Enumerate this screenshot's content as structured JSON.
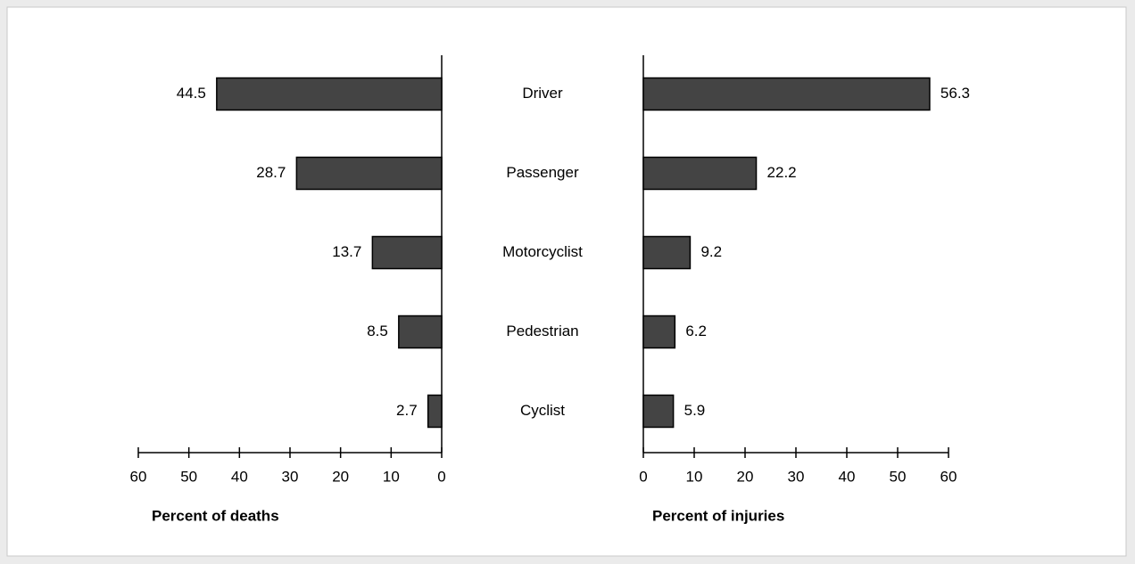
{
  "chart_data": [
    {
      "type": "bar",
      "orientation": "horizontal",
      "reversed": true,
      "categories": [
        "Driver",
        "Passenger",
        "Motorcyclist",
        "Pedestrian",
        "Cyclist"
      ],
      "values": [
        44.5,
        28.7,
        13.7,
        8.5,
        2.7
      ],
      "color": "#444444",
      "xlim": [
        0,
        60
      ],
      "xticks": [
        0,
        10,
        20,
        30,
        40,
        50,
        60
      ],
      "xlabel": "Percent of deaths"
    },
    {
      "type": "bar",
      "orientation": "horizontal",
      "reversed": false,
      "values": [
        56.3,
        22.2,
        9.2,
        6.2,
        5.9
      ],
      "color": "#444444",
      "xlim": [
        0,
        60
      ],
      "xticks": [
        0,
        10,
        20,
        30,
        40,
        50,
        60
      ],
      "xlabel": "Percent of injuries"
    }
  ]
}
